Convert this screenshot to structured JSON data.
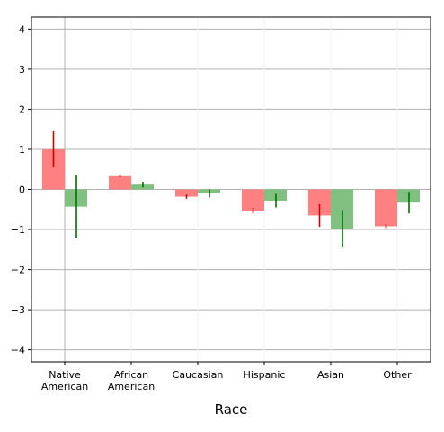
{
  "chart_data": {
    "type": "bar",
    "xlabel": "Race",
    "ylabel": "",
    "title": "",
    "categories": [
      [
        "Native",
        "American"
      ],
      [
        "African",
        "American"
      ],
      [
        "Caucasian"
      ],
      [
        "Hispanic"
      ],
      [
        "Asian"
      ],
      [
        "Other"
      ]
    ],
    "ylim": [
      -4.3,
      4.3
    ],
    "yticks": [
      -4,
      -3,
      -2,
      -1,
      0,
      1,
      2,
      3,
      4
    ],
    "ytick_labels": [
      "−4",
      "−3",
      "−2",
      "−1",
      "0",
      "1",
      "2",
      "3",
      "4"
    ],
    "grid": true,
    "series": [
      {
        "color": "#ff8080",
        "error_color": "#cc0000",
        "values": [
          1.0,
          0.33,
          -0.18,
          -0.53,
          -0.65,
          -0.92
        ],
        "err_low": [
          0.55,
          0.3,
          -0.23,
          -0.6,
          -0.93,
          -0.97
        ],
        "err_high": [
          1.45,
          0.36,
          -0.13,
          -0.46,
          -0.37,
          -0.87
        ]
      },
      {
        "color": "#80c080",
        "error_color": "#007000",
        "values": [
          -0.43,
          0.12,
          -0.1,
          -0.28,
          -0.98,
          -0.33
        ],
        "err_low": [
          -1.22,
          0.05,
          -0.2,
          -0.45,
          -1.45,
          -0.6
        ],
        "err_high": [
          0.37,
          0.19,
          0.0,
          -0.11,
          -0.51,
          -0.06
        ]
      }
    ]
  }
}
